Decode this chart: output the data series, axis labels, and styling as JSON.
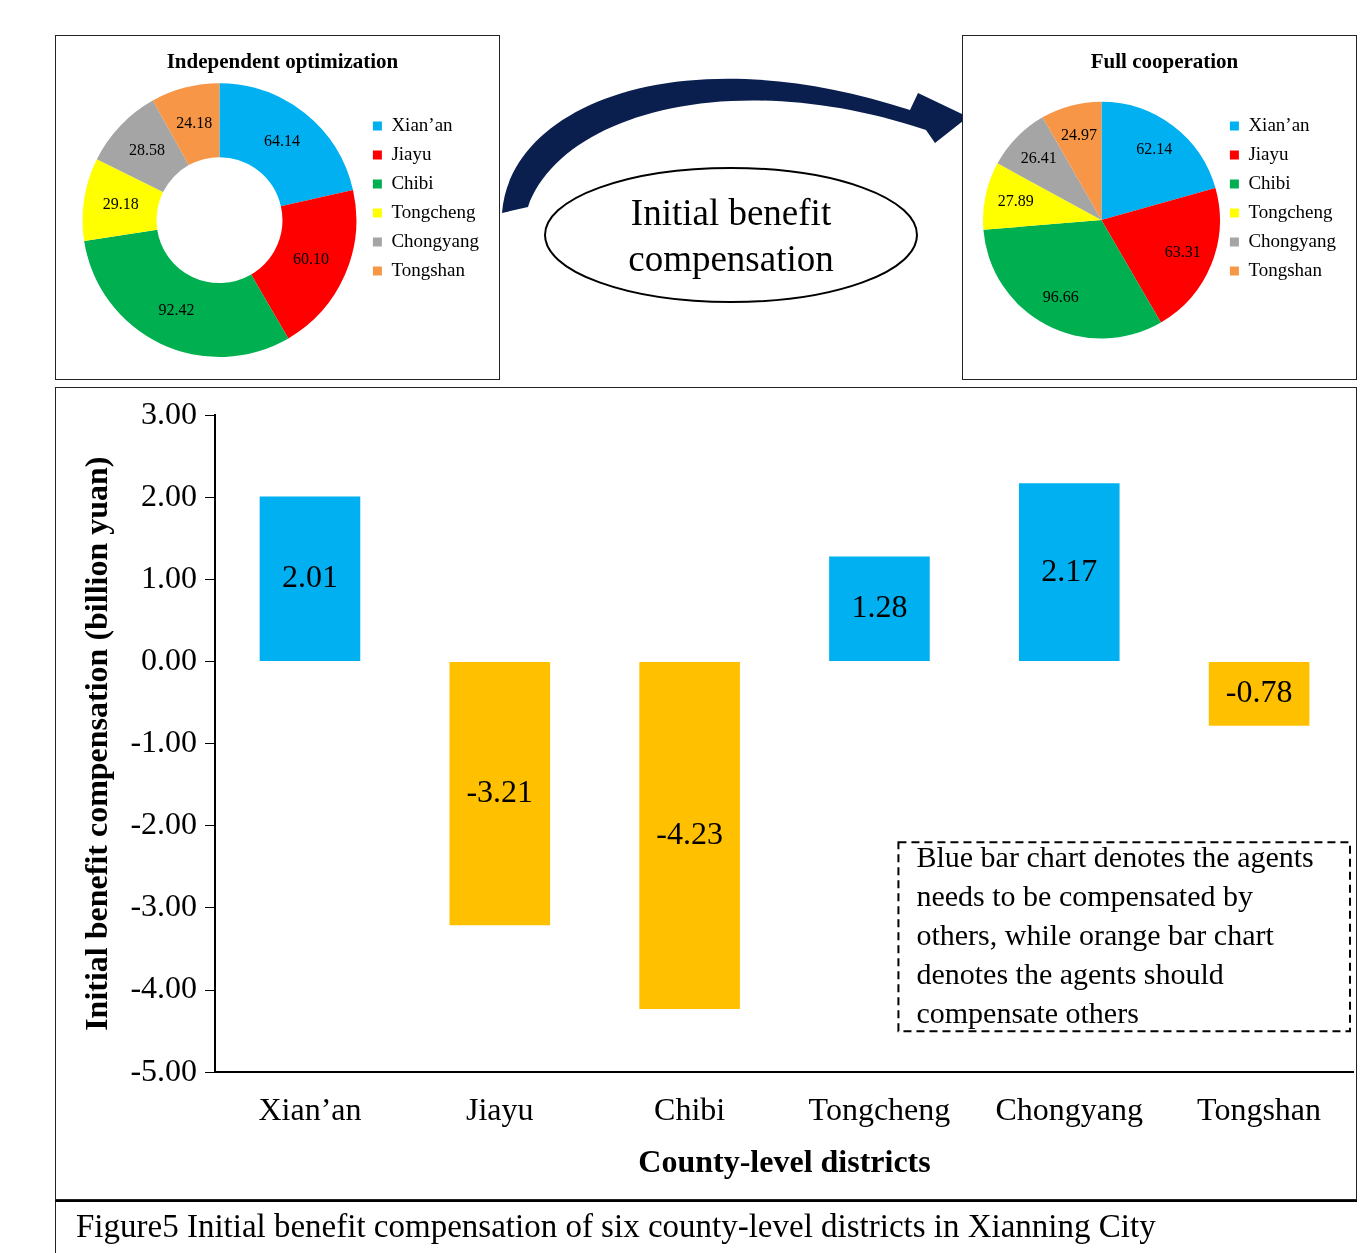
{
  "chart_data": [
    {
      "type": "donut",
      "title": "Independent optimization",
      "categories": [
        "Xian’an",
        "Jiayu",
        "Chibi",
        "Tongcheng",
        "Chongyang",
        "Tongshan"
      ],
      "values": [
        64.14,
        60.1,
        92.42,
        29.18,
        28.58,
        24.18
      ],
      "value_labels": [
        "64.14",
        "60.10",
        "92.42",
        "29.18",
        "28.58",
        "24.18"
      ],
      "colors": [
        "#00b0f0",
        "#ff0000",
        "#00b050",
        "#ffff00",
        "#a5a5a5",
        "#f79646"
      ],
      "legend": "right"
    },
    {
      "type": "other",
      "annotations": [
        "Initial benefit compensation"
      ]
    },
    {
      "type": "pie",
      "title": "Full cooperation",
      "categories": [
        "Xian’an",
        "Jiayu",
        "Chibi",
        "Tongcheng",
        "Chongyang",
        "Tongshan"
      ],
      "values": [
        62.14,
        63.31,
        96.66,
        27.89,
        26.41,
        24.97
      ],
      "value_labels": [
        "62.14",
        "63.31",
        "96.66",
        "27.89",
        "26.41",
        "24.97"
      ],
      "colors": [
        "#00b0f0",
        "#ff0000",
        "#00b050",
        "#ffff00",
        "#a5a5a5",
        "#f79646"
      ],
      "legend": "right"
    },
    {
      "type": "bar",
      "xlabel": "County-level districts",
      "ylabel": "Initial benefit compensation (billion yuan)",
      "categories": [
        "Xian’an",
        "Jiayu",
        "Chibi",
        "Tongcheng",
        "Chongyang",
        "Tongshan"
      ],
      "values": [
        2.01,
        -3.21,
        -4.23,
        1.28,
        2.17,
        -0.78
      ],
      "value_labels": [
        "2.01",
        "-3.21",
        "-4.23",
        "1.28",
        "2.17",
        "-0.78"
      ],
      "colors": [
        "#00b0f0",
        "#ffc000",
        "#ffc000",
        "#00b0f0",
        "#00b0f0",
        "#ffc000"
      ],
      "ylim": [
        -5,
        3
      ],
      "yticks": [
        {
          "value": -5,
          "label": "-5.00"
        },
        {
          "value": -4,
          "label": "-4.00"
        },
        {
          "value": -3,
          "label": "-3.00"
        },
        {
          "value": -2,
          "label": "-2.00"
        },
        {
          "value": -1,
          "label": "-1.00"
        },
        {
          "value": 0,
          "label": "0.00"
        },
        {
          "value": 1,
          "label": "1.00"
        },
        {
          "value": 2,
          "label": "2.00"
        },
        {
          "value": 3,
          "label": "3.00"
        }
      ],
      "grid": false,
      "legend": false,
      "annotations": [
        "Blue bar chart denotes the agents needs to be compensated by others, while orange bar chart denotes the agents should compensate others",
        "Figure5  Initial benefit compensation of six county-level districts in Xianning City"
      ]
    }
  ]
}
